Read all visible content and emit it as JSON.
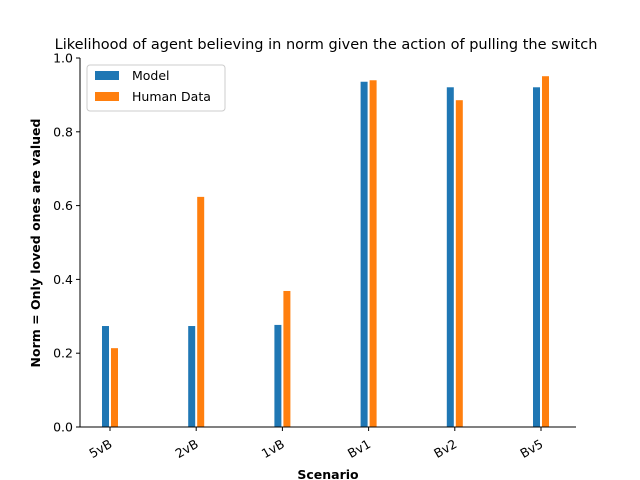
{
  "chart_data": {
    "type": "bar",
    "title": "Likelihood of agent believing in norm given the action of pulling the switch",
    "xlabel": "Scenario",
    "ylabel": "Norm = Only loved ones are valued",
    "categories": [
      "5vB",
      "2vB",
      "1vB",
      "Bv1",
      "Bv2",
      "Bv5"
    ],
    "series": [
      {
        "name": "Model",
        "color": "#1f77b4",
        "values": [
          0.275,
          0.275,
          0.278,
          0.937,
          0.922,
          0.922
        ]
      },
      {
        "name": "Human Data",
        "color": "#ff7f0e",
        "values": [
          0.215,
          0.625,
          0.37,
          0.941,
          0.887,
          0.952
        ]
      }
    ],
    "ylim": [
      0,
      1.0
    ],
    "yticks": [
      "0.0",
      "0.2",
      "0.4",
      "0.6",
      "0.8",
      "1.0"
    ],
    "ytick_values": [
      0,
      0.2,
      0.4,
      0.6,
      0.8,
      1.0
    ],
    "grid": false,
    "legend_position": "top-left"
  }
}
